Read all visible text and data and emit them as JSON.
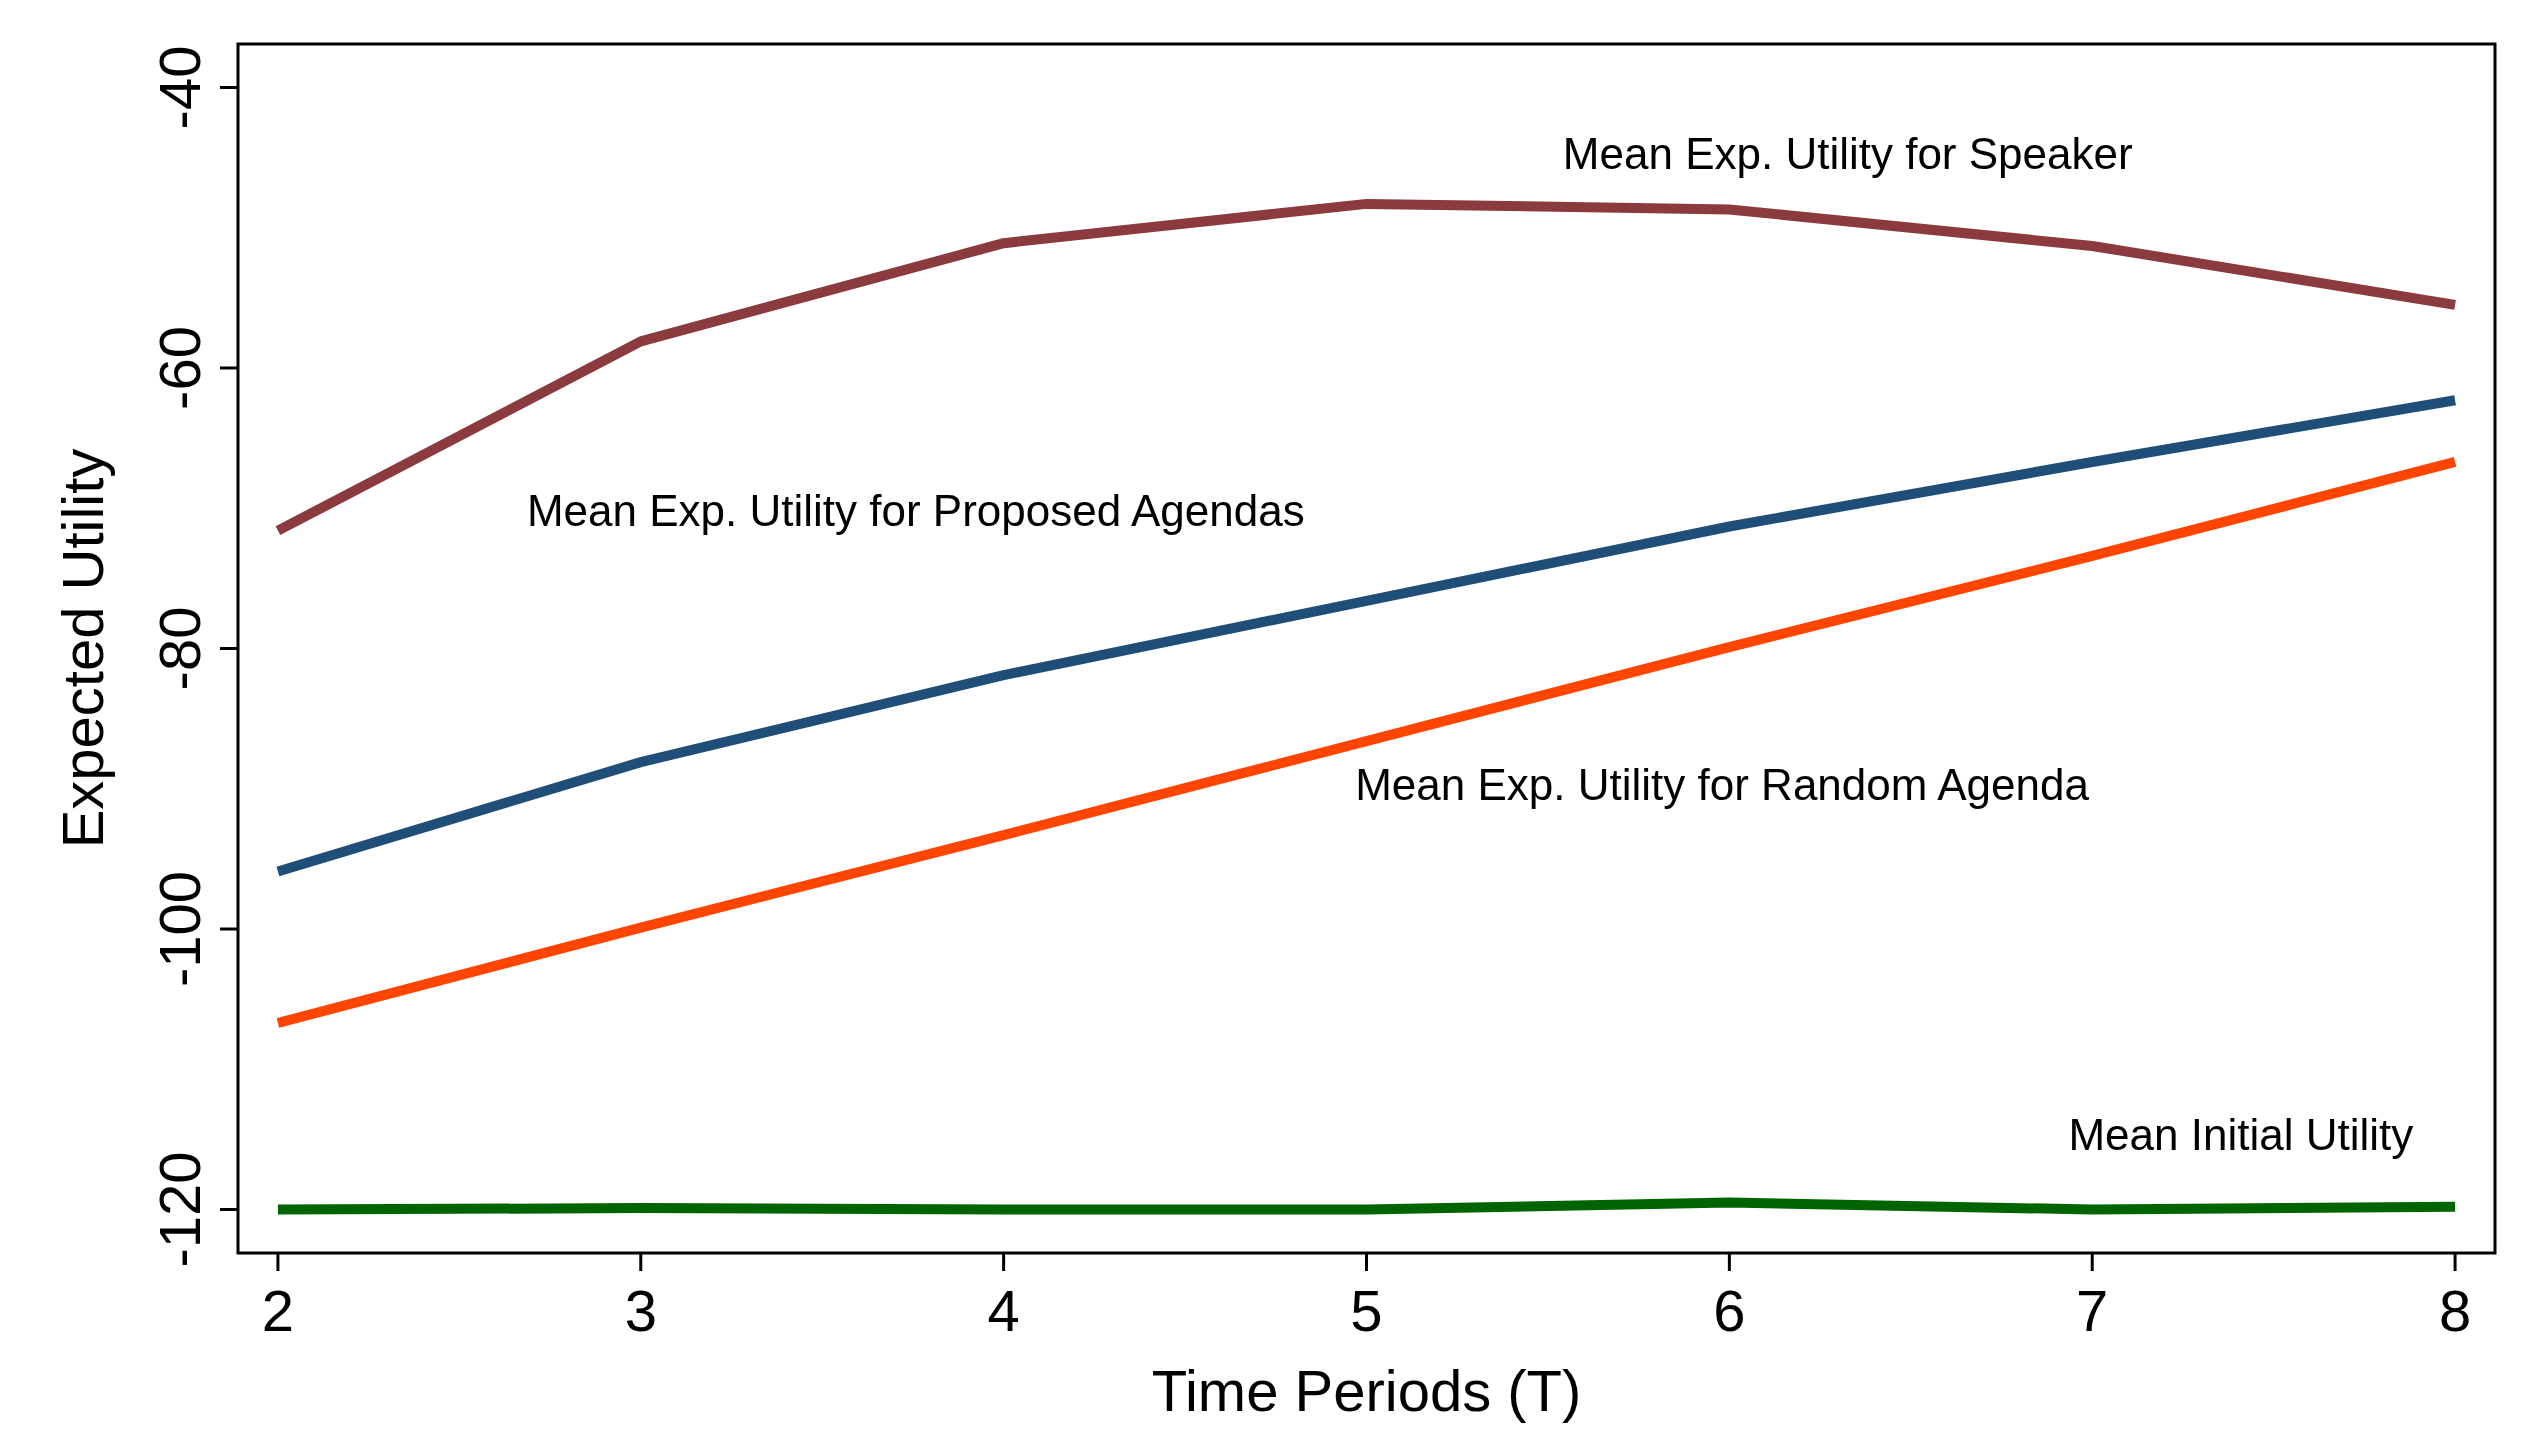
{
  "chart_data": {
    "type": "line",
    "xlabel": "Time Periods (T)",
    "ylabel": "Expected Utility",
    "x": [
      2,
      3,
      4,
      5,
      6,
      7,
      8
    ],
    "xlim": [
      1.89,
      8.11
    ],
    "xticks": [
      2,
      3,
      4,
      5,
      6,
      7,
      8
    ],
    "ylim": [
      -123.1,
      -36.9
    ],
    "yticks": [
      -40,
      -60,
      -80,
      -100,
      -120
    ],
    "grid": false,
    "marker": "none",
    "line_style": "solid",
    "series": [
      {
        "color": "#8b3a3e",
        "values": [
          -71.6,
          -58.1,
          -51.1,
          -48.3,
          -48.7,
          -51.3,
          -55.5
        ]
      },
      {
        "color": "#1f4e79",
        "values": [
          -95.9,
          -88.1,
          -81.9,
          -76.6,
          -71.3,
          -66.7,
          -62.3
        ]
      },
      {
        "color": "#ff4500",
        "values": [
          -106.7,
          -99.9,
          -93.3,
          -86.6,
          -79.9,
          -73.4,
          -66.7
        ]
      },
      {
        "color": "#006400",
        "values": [
          -120,
          -119.9,
          -120,
          -120,
          -119.5,
          -120,
          -119.8
        ]
      }
    ],
    "annotations": [
      "Mean Exp. Utility for Speaker",
      "Mean Exp. Utility for Proposed Agendas",
      "Mean Exp. Utility for Random Agenda",
      "Mean Initial Utility"
    ]
  }
}
